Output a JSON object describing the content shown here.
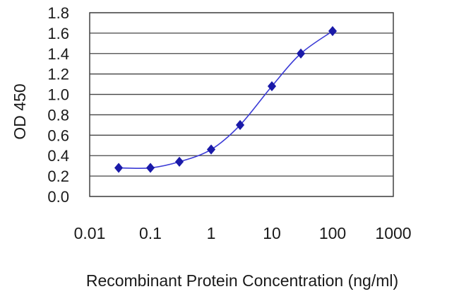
{
  "chart_data": {
    "type": "line",
    "xscale": "log",
    "x_ticks": [
      0.01,
      0.1,
      1,
      10,
      100,
      1000
    ],
    "x_tick_labels": [
      "0.01",
      "0.1",
      "1",
      "10",
      "100",
      "1000"
    ],
    "y_ticks": [
      0.0,
      0.2,
      0.4,
      0.6,
      0.8,
      1.0,
      1.2,
      1.4,
      1.6,
      1.8
    ],
    "y_tick_labels": [
      "0.0",
      "0.2",
      "0.4",
      "0.6",
      "0.8",
      "1.0",
      "1.2",
      "1.4",
      "1.6",
      "1.8"
    ],
    "xlim": [
      0.01,
      1000
    ],
    "ylim": [
      0.0,
      1.8
    ],
    "xlabel": "Recombinant Protein Concentration (ng/ml)",
    "ylabel": "OD 450",
    "grid": "horizontal",
    "series": [
      {
        "x": [
          0.03,
          0.1,
          0.3,
          1,
          3,
          10,
          30,
          100
        ],
        "y": [
          0.28,
          0.28,
          0.34,
          0.46,
          0.7,
          1.08,
          1.4,
          1.62
        ]
      }
    ],
    "colors": {
      "line": "#3b3bd6",
      "marker": "#1a1aa8",
      "grid": "#444444",
      "axis": "#333333"
    }
  }
}
